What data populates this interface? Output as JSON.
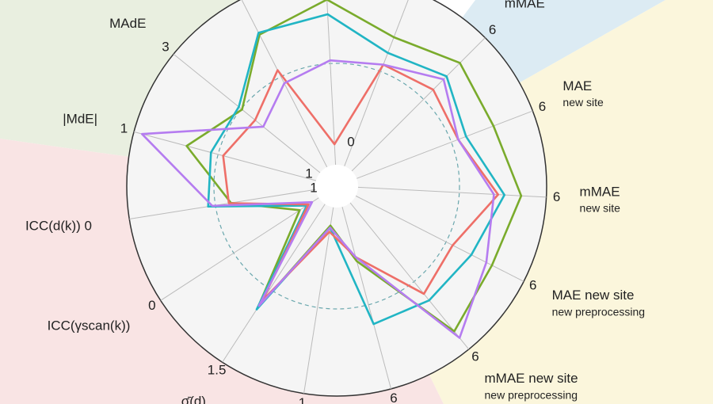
{
  "chart_data": {
    "type": "radar",
    "rlim": [
      0,
      1
    ],
    "axes": [
      {
        "label": null,
        "sublabel": null,
        "tick": null
      },
      {
        "label": null,
        "sublabel": null,
        "tick": null
      },
      {
        "label": "mMAE",
        "sublabel": null,
        "tick": "6"
      },
      {
        "label": "MAE",
        "sublabel": "new site",
        "tick": "6"
      },
      {
        "label": "mMAE",
        "sublabel": "new site",
        "tick": "6"
      },
      {
        "label": "MAE new site",
        "sublabel": "new preprocessing",
        "tick": "6"
      },
      {
        "label": "mMAE new site",
        "sublabel": "new preprocessing",
        "tick": "6"
      },
      {
        "label": null,
        "sublabel": null,
        "tick": "6"
      },
      {
        "label": null,
        "sublabel": null,
        "tick": "1"
      },
      {
        "label": "σ̄(d)",
        "sublabel": null,
        "tick": "1.5"
      },
      {
        "label": "ICC(γscan(k))",
        "sublabel": null,
        "tick": "0"
      },
      {
        "label": "ICC(d(k)) 0",
        "sublabel": null,
        "tick": null
      },
      {
        "label": "|MdE|",
        "sublabel": null,
        "tick": "1"
      },
      {
        "label": "MAdE",
        "sublabel": null,
        "tick": "3"
      },
      {
        "label": null,
        "sublabel": null,
        "tick": null
      }
    ],
    "inner_ticks": [
      "0",
      "1",
      "1"
    ],
    "series": [
      {
        "color": "#7aab2c",
        "values": [
          0.89,
          0.76,
          0.83,
          0.8,
          0.88,
          0.83,
          0.89,
          0.37,
          0.19,
          0.69,
          0.21,
          0.51,
          0.74,
          0.58,
          0.81
        ]
      },
      {
        "color": "#21b5c4",
        "values": [
          0.82,
          0.68,
          0.74,
          0.66,
          0.8,
          0.72,
          0.7,
          0.68,
          0.2,
          0.7,
          0.17,
          0.62,
          0.62,
          0.6,
          0.82
        ]
      },
      {
        "color": "#ee6f68",
        "values": [
          0.2,
          0.62,
          0.65,
          0.62,
          0.77,
          0.62,
          0.66,
          0.35,
          0.22,
          0.65,
          0.16,
          0.52,
          0.56,
          0.5,
          0.62
        ]
      },
      {
        "color": "#b57cf0",
        "values": [
          0.6,
          0.62,
          0.72,
          0.62,
          0.75,
          0.8,
          0.93,
          0.35,
          0.2,
          0.68,
          0.14,
          0.6,
          0.96,
          0.45,
          0.55
        ]
      }
    ]
  }
}
